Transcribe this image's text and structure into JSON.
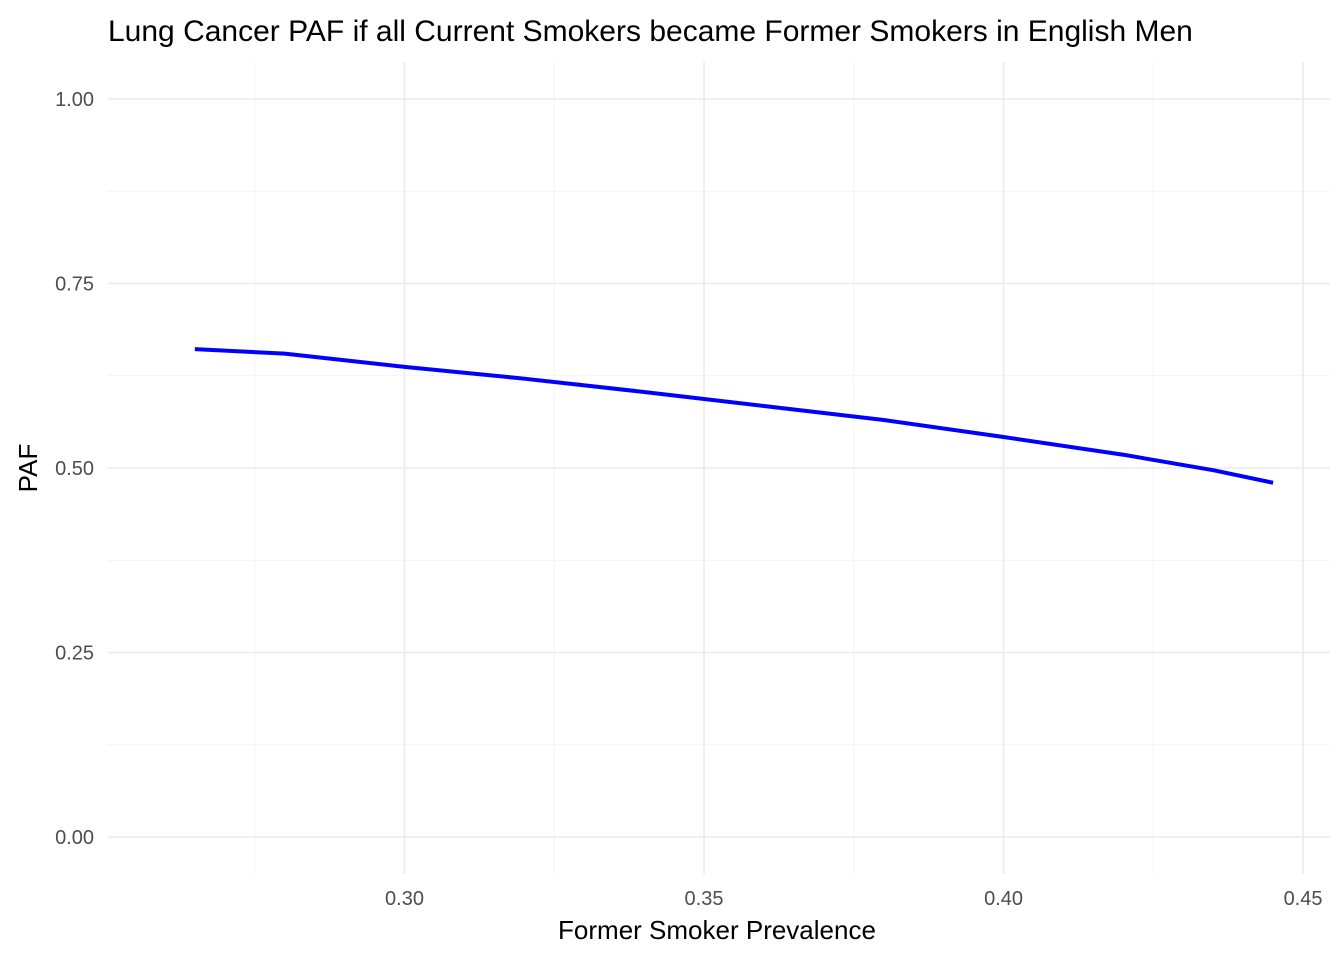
{
  "chart_data": {
    "type": "line",
    "title": "Lung Cancer PAF if all Current Smokers became Former Smokers in English Men",
    "xlabel": "Former Smoker Prevalence",
    "ylabel": "PAF",
    "xlim": [
      0.2505,
      0.4545
    ],
    "ylim": [
      -0.05,
      1.05
    ],
    "x_ticks": [
      0.3,
      0.35,
      0.4,
      0.45
    ],
    "x_tick_labels": [
      "0.30",
      "0.35",
      "0.40",
      "0.45"
    ],
    "y_ticks": [
      0.0,
      0.25,
      0.5,
      0.75,
      1.0
    ],
    "y_tick_labels": [
      "0.00",
      "0.25",
      "0.50",
      "0.75",
      "1.00"
    ],
    "grid": true,
    "legend": "none",
    "color": "#0000ff",
    "series": [
      {
        "x": [
          0.265,
          0.28,
          0.3,
          0.32,
          0.34,
          0.36,
          0.38,
          0.4,
          0.42,
          0.435,
          0.445
        ],
        "values": [
          0.661,
          0.655,
          0.637,
          0.621,
          0.603,
          0.584,
          0.565,
          0.542,
          0.518,
          0.497,
          0.48
        ]
      }
    ]
  }
}
